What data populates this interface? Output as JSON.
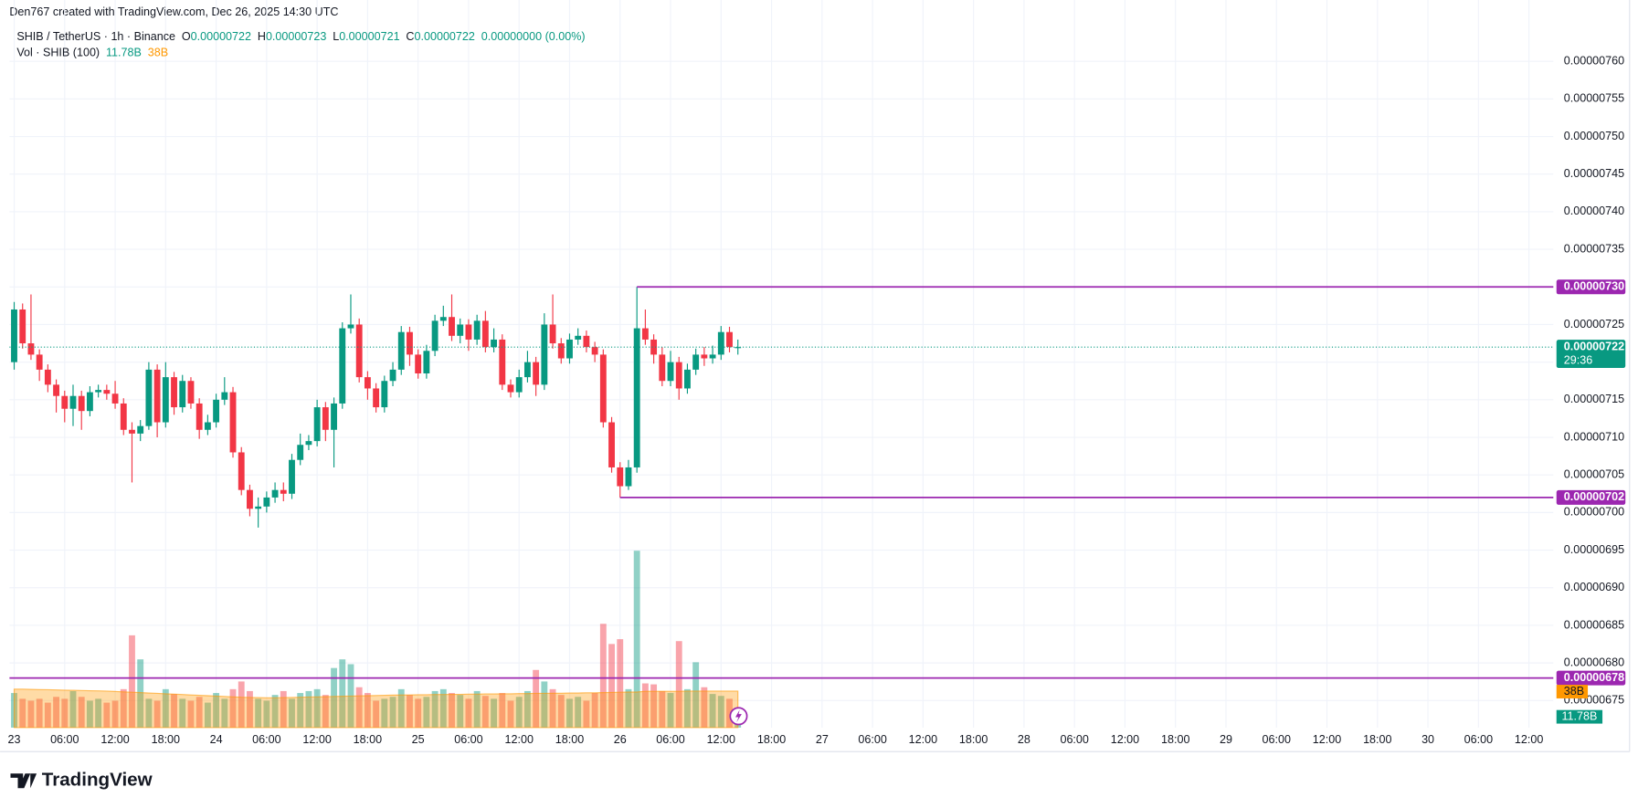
{
  "header": "Den767 created with TradingView.com, Dec 26, 2025 14:30 UTC",
  "footer": "TradingView",
  "chart_data": {
    "type": "candlestick",
    "legend": {
      "symbol": "SHIB / TetherUS · 1h · Binance",
      "ohlc": [
        {
          "key": "O",
          "value": 7.22e-06
        },
        {
          "key": "H",
          "value": 7.23e-06
        },
        {
          "key": "L",
          "value": 7.21e-06
        },
        {
          "key": "C",
          "value": 7.22e-06
        }
      ],
      "change": "0.00000000 (0.00%)",
      "volume_title": "Vol · SHIB (100)",
      "volume_label": "11.78B",
      "volume_ma_label": "38B"
    },
    "up_color": "#089981",
    "down_color": "#f23645",
    "ma_color": "#ff9800",
    "level_color": "#9c27b0",
    "grid": true,
    "xlim": [
      -0.56,
      182.9
    ],
    "ylim": [
      6.714e-06,
      7.651e-06
    ],
    "volume_ylim": [
      0,
      733
    ],
    "xticks": [
      {
        "value": 0,
        "label": "23"
      },
      {
        "value": 6,
        "label": "06:00"
      },
      {
        "value": 12,
        "label": "12:00"
      },
      {
        "value": 18,
        "label": "18:00"
      },
      {
        "value": 24,
        "label": "24"
      },
      {
        "value": 30,
        "label": "06:00"
      },
      {
        "value": 36,
        "label": "12:00"
      },
      {
        "value": 42,
        "label": "18:00"
      },
      {
        "value": 48,
        "label": "25"
      },
      {
        "value": 54,
        "label": "06:00"
      },
      {
        "value": 60,
        "label": "12:00"
      },
      {
        "value": 66,
        "label": "18:00"
      },
      {
        "value": 72,
        "label": "26"
      },
      {
        "value": 78,
        "label": "06:00"
      },
      {
        "value": 84,
        "label": "12:00"
      },
      {
        "value": 90,
        "label": "18:00"
      },
      {
        "value": 96,
        "label": "27"
      },
      {
        "value": 102,
        "label": "06:00"
      },
      {
        "value": 108,
        "label": "12:00"
      },
      {
        "value": 114,
        "label": "18:00"
      },
      {
        "value": 120,
        "label": "28"
      },
      {
        "value": 126,
        "label": "06:00"
      },
      {
        "value": 132,
        "label": "12:00"
      },
      {
        "value": 138,
        "label": "18:00"
      },
      {
        "value": 144,
        "label": "29"
      },
      {
        "value": 150,
        "label": "06:00"
      },
      {
        "value": 156,
        "label": "12:00"
      },
      {
        "value": 162,
        "label": "18:00"
      },
      {
        "value": 168,
        "label": "30"
      },
      {
        "value": 174,
        "label": "06:00"
      },
      {
        "value": 180,
        "label": "12:00"
      }
    ],
    "yticks": [
      {
        "value": 7.6e-06,
        "label": "0.00000760"
      },
      {
        "value": 7.55e-06,
        "label": "0.00000755"
      },
      {
        "value": 7.5e-06,
        "label": "0.00000750"
      },
      {
        "value": 7.45e-06,
        "label": "0.00000745"
      },
      {
        "value": 7.4e-06,
        "label": "0.00000740"
      },
      {
        "value": 7.35e-06,
        "label": "0.00000735"
      },
      {
        "value": 7.3e-06,
        "label": "0.00000730"
      },
      {
        "value": 7.25e-06,
        "label": "0.00000725"
      },
      {
        "value": 7.2e-06,
        "label": "0.00000720"
      },
      {
        "value": 7.15e-06,
        "label": "0.00000715"
      },
      {
        "value": 7.1e-06,
        "label": "0.00000710"
      },
      {
        "value": 7.05e-06,
        "label": "0.00000705"
      },
      {
        "value": 7e-06,
        "label": "0.00000700"
      },
      {
        "value": 6.95e-06,
        "label": "0.00000695"
      },
      {
        "value": 6.9e-06,
        "label": "0.00000690"
      },
      {
        "value": 6.85e-06,
        "label": "0.00000685"
      },
      {
        "value": 6.8e-06,
        "label": "0.00000680"
      },
      {
        "value": 6.75e-06,
        "label": "0.00000675"
      }
    ],
    "x": [
      0,
      1,
      2,
      3,
      4,
      5,
      6,
      7,
      8,
      9,
      10,
      11,
      12,
      13,
      14,
      15,
      16,
      17,
      18,
      19,
      20,
      21,
      22,
      23,
      24,
      25,
      26,
      27,
      28,
      29,
      30,
      31,
      32,
      33,
      34,
      35,
      36,
      37,
      38,
      39,
      40,
      41,
      42,
      43,
      44,
      45,
      46,
      47,
      48,
      49,
      50,
      51,
      52,
      53,
      54,
      55,
      56,
      57,
      58,
      59,
      60,
      61,
      62,
      63,
      64,
      65,
      66,
      67,
      68,
      69,
      70,
      71,
      72,
      73,
      74,
      75,
      76,
      77,
      78,
      79,
      80,
      81,
      82,
      83,
      84,
      85,
      86
    ],
    "open": [
      7.2e-06,
      7.27e-06,
      7.225e-06,
      7.21e-06,
      7.19e-06,
      7.17e-06,
      7.155e-06,
      7.138e-06,
      7.155e-06,
      7.135e-06,
      7.16e-06,
      7.163e-06,
      7.158e-06,
      7.145e-06,
      7.11e-06,
      7.105e-06,
      7.115e-06,
      7.19e-06,
      7.12e-06,
      7.18e-06,
      7.14e-06,
      7.175e-06,
      7.145e-06,
      7.11e-06,
      7.12e-06,
      7.15e-06,
      7.16e-06,
      7.08e-06,
      7.03e-06,
      7.005e-06,
      7.008e-06,
      7.02e-06,
      7.03e-06,
      7.025e-06,
      7.07e-06,
      7.09e-06,
      7.095e-06,
      7.14e-06,
      7.11e-06,
      7.145e-06,
      7.245e-06,
      7.25e-06,
      7.18e-06,
      7.165e-06,
      7.14e-06,
      7.175e-06,
      7.19e-06,
      7.24e-06,
      7.21e-06,
      7.185e-06,
      7.215e-06,
      7.255e-06,
      7.26e-06,
      7.235e-06,
      7.25e-06,
      7.23e-06,
      7.255e-06,
      7.22e-06,
      7.23e-06,
      7.17e-06,
      7.16e-06,
      7.18e-06,
      7.2e-06,
      7.17e-06,
      7.25e-06,
      7.225e-06,
      7.205e-06,
      7.23e-06,
      7.235e-06,
      7.22e-06,
      7.21e-06,
      7.12e-06,
      7.06e-06,
      7.035e-06,
      7.06e-06,
      7.245e-06,
      7.23e-06,
      7.21e-06,
      7.175e-06,
      7.2e-06,
      7.165e-06,
      7.19e-06,
      7.21e-06,
      7.205e-06,
      7.21e-06,
      7.24e-06,
      7.22e-06
    ],
    "high": [
      7.28e-06,
      7.278e-06,
      7.29e-06,
      7.217e-06,
      7.197e-06,
      7.177e-06,
      7.162e-06,
      7.17e-06,
      7.162e-06,
      7.168e-06,
      7.17e-06,
      7.17e-06,
      7.175e-06,
      7.152e-06,
      7.12e-06,
      7.123e-06,
      7.2e-06,
      7.197e-06,
      7.2e-06,
      7.187e-06,
      7.183e-06,
      7.18e-06,
      7.152e-06,
      7.13e-06,
      7.158e-06,
      7.18e-06,
      7.167e-06,
      7.087e-06,
      7.037e-06,
      7.02e-06,
      7.028e-06,
      7.04e-06,
      7.04e-06,
      7.078e-06,
      7.105e-06,
      7.103e-06,
      7.15e-06,
      7.147e-06,
      7.153e-06,
      7.253e-06,
      7.29e-06,
      7.258e-06,
      7.188e-06,
      7.172e-06,
      7.182e-06,
      7.2e-06,
      7.248e-06,
      7.247e-06,
      7.217e-06,
      7.223e-06,
      7.263e-06,
      7.275e-06,
      7.29e-06,
      7.258e-06,
      7.257e-06,
      7.263e-06,
      7.268e-06,
      7.245e-06,
      7.237e-06,
      7.177e-06,
      7.19e-06,
      7.215e-06,
      7.207e-06,
      7.265e-06,
      7.29e-06,
      7.232e-06,
      7.238e-06,
      7.245e-06,
      7.242e-06,
      7.227e-06,
      7.217e-06,
      7.127e-06,
      7.067e-06,
      7.07e-06,
      7.3e-06,
      7.27e-06,
      7.237e-06,
      7.22e-06,
      7.215e-06,
      7.207e-06,
      7.198e-06,
      7.218e-06,
      7.22e-06,
      7.222e-06,
      7.248e-06,
      7.247e-06,
      7.23e-06
    ],
    "low": [
      7.19e-06,
      7.218e-06,
      7.203e-06,
      7.175e-06,
      7.16e-06,
      7.133e-06,
      7.12e-06,
      7.115e-06,
      7.11e-06,
      7.128e-06,
      7.153e-06,
      7.15e-06,
      7.138e-06,
      7.103e-06,
      7.04e-06,
      7.095e-06,
      7.11e-06,
      7.1e-06,
      7.113e-06,
      7.13e-06,
      7.133e-06,
      7.138e-06,
      7.098e-06,
      7.103e-06,
      7.113e-06,
      7.143e-06,
      7.073e-06,
      7.023e-06,
      6.995e-06,
      6.98e-06,
      7e-06,
      7.013e-06,
      7.015e-06,
      7.018e-06,
      7.063e-06,
      7.083e-06,
      7.088e-06,
      7.095e-06,
      7.06e-06,
      7.138e-06,
      7.238e-06,
      7.173e-06,
      7.15e-06,
      7.133e-06,
      7.133e-06,
      7.168e-06,
      7.183e-06,
      7.195e-06,
      7.178e-06,
      7.178e-06,
      7.208e-06,
      7.248e-06,
      7.228e-06,
      7.225e-06,
      7.215e-06,
      7.223e-06,
      7.213e-06,
      7.213e-06,
      7.163e-06,
      7.153e-06,
      7.153e-06,
      7.173e-06,
      7.155e-06,
      7.163e-06,
      7.218e-06,
      7.198e-06,
      7.198e-06,
      7.223e-06,
      7.213e-06,
      7.2e-06,
      7.113e-06,
      7.053e-06,
      7.02e-06,
      7.03e-06,
      7.053e-06,
      7.223e-06,
      7.198e-06,
      7.168e-06,
      7.168e-06,
      7.15e-06,
      7.158e-06,
      7.183e-06,
      7.195e-06,
      7.198e-06,
      7.203e-06,
      7.213e-06,
      7.21e-06
    ],
    "close": [
      7.27e-06,
      7.225e-06,
      7.21e-06,
      7.19e-06,
      7.17e-06,
      7.155e-06,
      7.138e-06,
      7.155e-06,
      7.135e-06,
      7.16e-06,
      7.163e-06,
      7.158e-06,
      7.145e-06,
      7.11e-06,
      7.105e-06,
      7.115e-06,
      7.19e-06,
      7.12e-06,
      7.18e-06,
      7.14e-06,
      7.175e-06,
      7.145e-06,
      7.11e-06,
      7.12e-06,
      7.15e-06,
      7.16e-06,
      7.08e-06,
      7.03e-06,
      7.005e-06,
      7.008e-06,
      7.02e-06,
      7.03e-06,
      7.025e-06,
      7.07e-06,
      7.09e-06,
      7.095e-06,
      7.14e-06,
      7.11e-06,
      7.145e-06,
      7.245e-06,
      7.25e-06,
      7.18e-06,
      7.165e-06,
      7.14e-06,
      7.175e-06,
      7.19e-06,
      7.24e-06,
      7.21e-06,
      7.185e-06,
      7.215e-06,
      7.255e-06,
      7.26e-06,
      7.235e-06,
      7.25e-06,
      7.23e-06,
      7.255e-06,
      7.22e-06,
      7.23e-06,
      7.17e-06,
      7.16e-06,
      7.18e-06,
      7.2e-06,
      7.17e-06,
      7.25e-06,
      7.225e-06,
      7.205e-06,
      7.23e-06,
      7.235e-06,
      7.22e-06,
      7.21e-06,
      7.12e-06,
      7.06e-06,
      7.035e-06,
      7.06e-06,
      7.245e-06,
      7.23e-06,
      7.21e-06,
      7.175e-06,
      7.2e-06,
      7.165e-06,
      7.19e-06,
      7.21e-06,
      7.205e-06,
      7.21e-06,
      7.24e-06,
      7.22e-06,
      7.22e-06
    ],
    "volume": [
      36,
      30,
      28,
      30,
      26,
      32,
      30,
      38,
      32,
      28,
      30,
      26,
      28,
      40,
      96,
      71,
      30,
      28,
      40,
      35,
      30,
      28,
      32,
      26,
      36,
      30,
      40,
      48,
      38,
      30,
      28,
      34,
      38,
      30,
      36,
      38,
      40,
      34,
      62,
      71,
      66,
      42,
      36,
      28,
      30,
      32,
      40,
      34,
      30,
      32,
      38,
      40,
      36,
      34,
      30,
      38,
      33,
      30,
      36,
      28,
      32,
      38,
      60,
      48,
      40,
      34,
      30,
      32,
      28,
      36,
      108,
      87,
      92,
      40,
      184,
      46,
      45,
      38,
      36,
      90,
      40,
      68,
      42,
      35,
      33,
      30,
      11.78
    ],
    "volume_ma": [
      40,
      40,
      39.8,
      39.6,
      39.4,
      39.2,
      39,
      38.8,
      38.6,
      38.4,
      38.2,
      38,
      37.6,
      37.2,
      36.8,
      36.4,
      36,
      35.6,
      35.2,
      34.8,
      34.4,
      34,
      33.6,
      33.2,
      32.8,
      32.4,
      32,
      31.6,
      31.4,
      31.2,
      31,
      31,
      31.2,
      31.4,
      31.6,
      31.8,
      32,
      32.2,
      32.4,
      32.6,
      32.8,
      33,
      33.2,
      33.4,
      33.6,
      33.8,
      34,
      34,
      34.2,
      34.2,
      34.4,
      34.4,
      34.6,
      34.6,
      34.8,
      34.8,
      35,
      35,
      35.2,
      35.2,
      35.4,
      35.4,
      35.6,
      35.6,
      35.8,
      35.8,
      36,
      36,
      36.2,
      36.2,
      36.4,
      36.6,
      36.8,
      37,
      37,
      37.8,
      37.8,
      37.8,
      37.8,
      37.8,
      38,
      38,
      38,
      38,
      38,
      38,
      38
    ],
    "levels": [
      {
        "value": 7.3e-06,
        "label": "0.00000730",
        "from": 74
      },
      {
        "value": 7.02e-06,
        "from": 72
      },
      {
        "value": 6.78e-06
      }
    ],
    "last_price": {
      "value": 7.22e-06,
      "countdown": "29:36"
    }
  }
}
